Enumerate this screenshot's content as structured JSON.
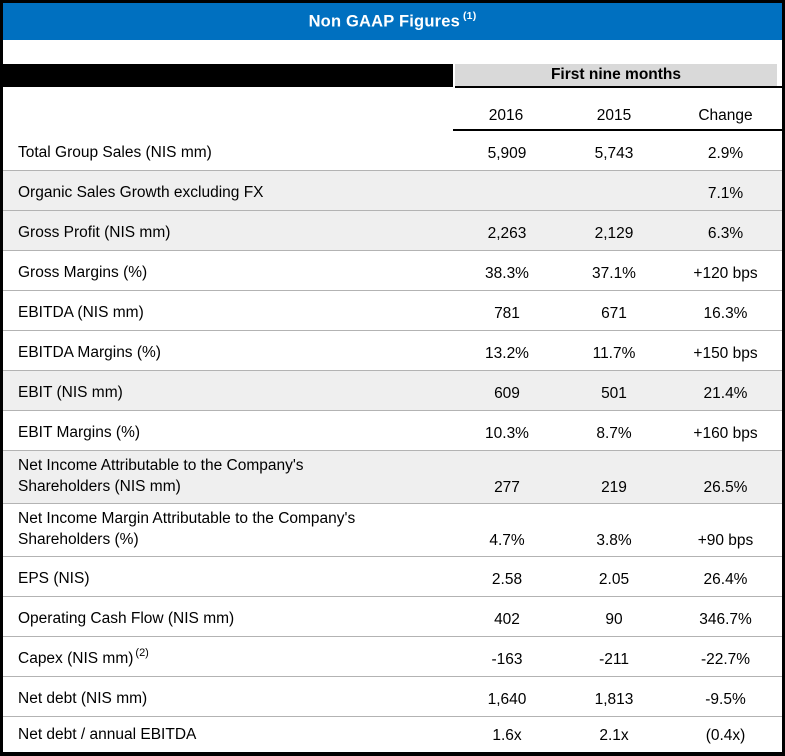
{
  "title": {
    "text": "Non GAAP Figures",
    "sup": "(1)"
  },
  "period_band": {
    "label": "First nine months"
  },
  "columns": [
    "2016",
    "2015",
    "Change"
  ],
  "colors": {
    "accent_blue": "#0070C0",
    "band_gray": "#D9D9D9",
    "row_shade": "#EFEFEF",
    "separator_gray": "#B3B3B3"
  },
  "rows": [
    {
      "label": "Total Group Sales (NIS mm)",
      "v2016": "5,909",
      "v2015": "5,743",
      "change": "2.9%",
      "shaded": false
    },
    {
      "label": "Organic Sales Growth excluding FX",
      "v2016": "",
      "v2015": "",
      "change": "7.1%",
      "shaded": true
    },
    {
      "label": "Gross Profit (NIS mm)",
      "v2016": "2,263",
      "v2015": "2,129",
      "change": "6.3%",
      "shaded": true
    },
    {
      "label": "Gross Margins (%)",
      "v2016": "38.3%",
      "v2015": "37.1%",
      "change": "+120 bps",
      "shaded": false
    },
    {
      "label": "EBITDA (NIS mm)",
      "v2016": "781",
      "v2015": "671",
      "change": "16.3%",
      "shaded": false
    },
    {
      "label": "EBITDA Margins (%)",
      "v2016": "13.2%",
      "v2015": "11.7%",
      "change": "+150 bps",
      "shaded": false
    },
    {
      "label": "EBIT (NIS mm)",
      "v2016": "609",
      "v2015": "501",
      "change": "21.4%",
      "shaded": true
    },
    {
      "label": "EBIT Margins (%)",
      "v2016": "10.3%",
      "v2015": "8.7%",
      "change": "+160 bps",
      "shaded": false
    },
    {
      "label": "Net Income Attributable to the Company's",
      "label2": "Shareholders (NIS mm)",
      "v2016": "277",
      "v2015": "219",
      "change": "26.5%",
      "shaded": true
    },
    {
      "label": "Net Income Margin Attributable to the Company's",
      "label2": "Shareholders (%)",
      "v2016": "4.7%",
      "v2015": "3.8%",
      "change": "+90 bps",
      "shaded": false
    },
    {
      "label": "EPS (NIS)",
      "v2016": "2.58",
      "v2015": "2.05",
      "change": "26.4%",
      "shaded": false
    },
    {
      "label": "Operating Cash Flow (NIS mm)",
      "v2016": "402",
      "v2015": "90",
      "change": "346.7%",
      "shaded": false
    },
    {
      "label": "Capex (NIS mm)",
      "sup": "(2)",
      "v2016": "-163",
      "v2015": "-211",
      "change": "-22.7%",
      "shaded": false
    },
    {
      "label": "Net debt (NIS mm)",
      "v2016": "1,640",
      "v2015": "1,813",
      "change": "-9.5%",
      "shaded": false
    },
    {
      "label": "Net debt / annual EBITDA",
      "v2016": "1.6x",
      "v2015": "2.1x",
      "change": "(0.4x)",
      "shaded": false
    }
  ]
}
